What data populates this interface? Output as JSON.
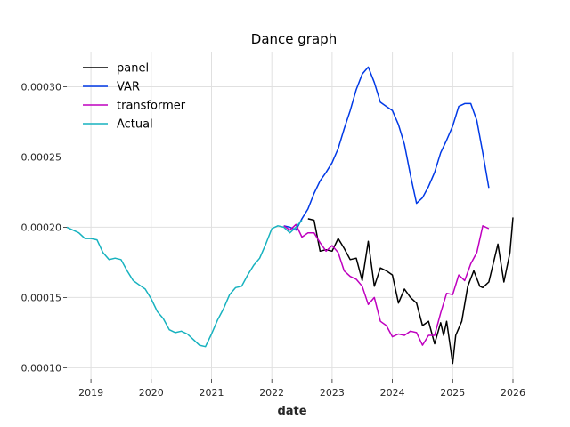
{
  "chart_data": {
    "type": "line",
    "title": "Dance graph",
    "xlabel": "date",
    "ylabel": "",
    "xlim": [
      2018.6,
      2026.0
    ],
    "ylim": [
      9.2e-05,
      0.000325
    ],
    "x_ticks": [
      2019,
      2020,
      2021,
      2022,
      2023,
      2024,
      2025,
      2026
    ],
    "x_tick_labels": [
      "2019",
      "2020",
      "2021",
      "2022",
      "2023",
      "2024",
      "2025",
      "2026"
    ],
    "y_ticks": [
      0.0001,
      0.00015,
      0.0002,
      0.00025,
      0.0003
    ],
    "y_tick_labels": [
      "0.00010",
      "0.00015",
      "0.00020",
      "0.00025",
      "0.00030"
    ],
    "grid": true,
    "legend_position": "top-left",
    "series": [
      {
        "name": "panel",
        "color": "#000000",
        "x": [
          2022.6,
          2022.7,
          2022.8,
          2022.9,
          2023.0,
          2023.1,
          2023.2,
          2023.3,
          2023.4,
          2023.5,
          2023.6,
          2023.7,
          2023.8,
          2023.9,
          2024.0,
          2024.1,
          2024.2,
          2024.3,
          2024.4,
          2024.5,
          2024.6,
          2024.7,
          2024.8,
          2024.85,
          2024.9,
          2025.0,
          2025.05,
          2025.15,
          2025.25,
          2025.35,
          2025.45,
          2025.5,
          2025.6,
          2025.75,
          2025.85,
          2025.95,
          2026.0
        ],
        "y": [
          0.000206,
          0.000205,
          0.000183,
          0.000184,
          0.000183,
          0.000192,
          0.000185,
          0.000177,
          0.000178,
          0.000162,
          0.00019,
          0.000158,
          0.000171,
          0.000169,
          0.000166,
          0.000146,
          0.000156,
          0.00015,
          0.000146,
          0.00013,
          0.000133,
          0.000117,
          0.000132,
          0.000123,
          0.000133,
          0.000103,
          0.000123,
          0.000133,
          0.000158,
          0.000169,
          0.000158,
          0.000157,
          0.000161,
          0.000188,
          0.000161,
          0.000182,
          0.000207
        ]
      },
      {
        "name": "VAR",
        "color": "#0039e6",
        "x": [
          2022.2,
          2022.3,
          2022.4,
          2022.5,
          2022.6,
          2022.7,
          2022.8,
          2022.9,
          2023.0,
          2023.1,
          2023.2,
          2023.3,
          2023.4,
          2023.5,
          2023.6,
          2023.7,
          2023.8,
          2023.9,
          2024.0,
          2024.1,
          2024.2,
          2024.3,
          2024.4,
          2024.5,
          2024.6,
          2024.7,
          2024.8,
          2024.9,
          2025.0,
          2025.1,
          2025.2,
          2025.3,
          2025.4,
          2025.5,
          2025.6
        ],
        "y": [
          0.000201,
          0.0002,
          0.000198,
          0.000206,
          0.000213,
          0.000224,
          0.000233,
          0.000239,
          0.000246,
          0.000256,
          0.00027,
          0.000283,
          0.000298,
          0.000309,
          0.000314,
          0.000303,
          0.000289,
          0.000286,
          0.000283,
          0.000273,
          0.000259,
          0.000237,
          0.000217,
          0.000221,
          0.000229,
          0.000239,
          0.000253,
          0.000262,
          0.000272,
          0.000286,
          0.000288,
          0.000288,
          0.000276,
          0.000253,
          0.000228
        ]
      },
      {
        "name": "transformer",
        "color": "#bf00bf",
        "x": [
          2022.2,
          2022.3,
          2022.4,
          2022.5,
          2022.6,
          2022.7,
          2022.8,
          2022.9,
          2023.0,
          2023.1,
          2023.2,
          2023.3,
          2023.4,
          2023.5,
          2023.6,
          2023.7,
          2023.8,
          2023.9,
          2024.0,
          2024.1,
          2024.2,
          2024.3,
          2024.4,
          2024.5,
          2024.6,
          2024.7,
          2024.8,
          2024.9,
          2025.0,
          2025.1,
          2025.2,
          2025.3,
          2025.4,
          2025.5,
          2025.6
        ],
        "y": [
          0.000201,
          0.000198,
          0.000202,
          0.000193,
          0.000196,
          0.000196,
          0.000189,
          0.000183,
          0.000187,
          0.000182,
          0.000169,
          0.000165,
          0.000163,
          0.000158,
          0.000145,
          0.00015,
          0.000133,
          0.00013,
          0.000122,
          0.000124,
          0.000123,
          0.000126,
          0.000125,
          0.000116,
          0.000123,
          0.000123,
          0.000139,
          0.000153,
          0.000152,
          0.000166,
          0.000162,
          0.000174,
          0.000182,
          0.000201,
          0.000199
        ]
      },
      {
        "name": "Actual",
        "color": "#17b2bf",
        "x": [
          2018.6,
          2018.7,
          2018.8,
          2018.9,
          2019.0,
          2019.1,
          2019.2,
          2019.3,
          2019.4,
          2019.5,
          2019.6,
          2019.7,
          2019.8,
          2019.9,
          2020.0,
          2020.1,
          2020.2,
          2020.3,
          2020.4,
          2020.5,
          2020.6,
          2020.7,
          2020.8,
          2020.9,
          2021.0,
          2021.1,
          2021.2,
          2021.3,
          2021.4,
          2021.5,
          2021.6,
          2021.7,
          2021.8,
          2021.9,
          2022.0,
          2022.1,
          2022.2,
          2022.3,
          2022.4,
          2022.5
        ],
        "y": [
          0.0002,
          0.000198,
          0.000196,
          0.000192,
          0.000192,
          0.000191,
          0.000182,
          0.000177,
          0.000178,
          0.000177,
          0.000169,
          0.000162,
          0.000159,
          0.000156,
          0.000149,
          0.00014,
          0.000135,
          0.000127,
          0.000125,
          0.000126,
          0.000124,
          0.00012,
          0.000116,
          0.000115,
          0.000124,
          0.000134,
          0.000142,
          0.000152,
          0.000157,
          0.000158,
          0.000166,
          0.000173,
          0.000178,
          0.000188,
          0.000199,
          0.000201,
          0.0002,
          0.000196,
          0.0002,
          0.000205
        ]
      }
    ]
  }
}
